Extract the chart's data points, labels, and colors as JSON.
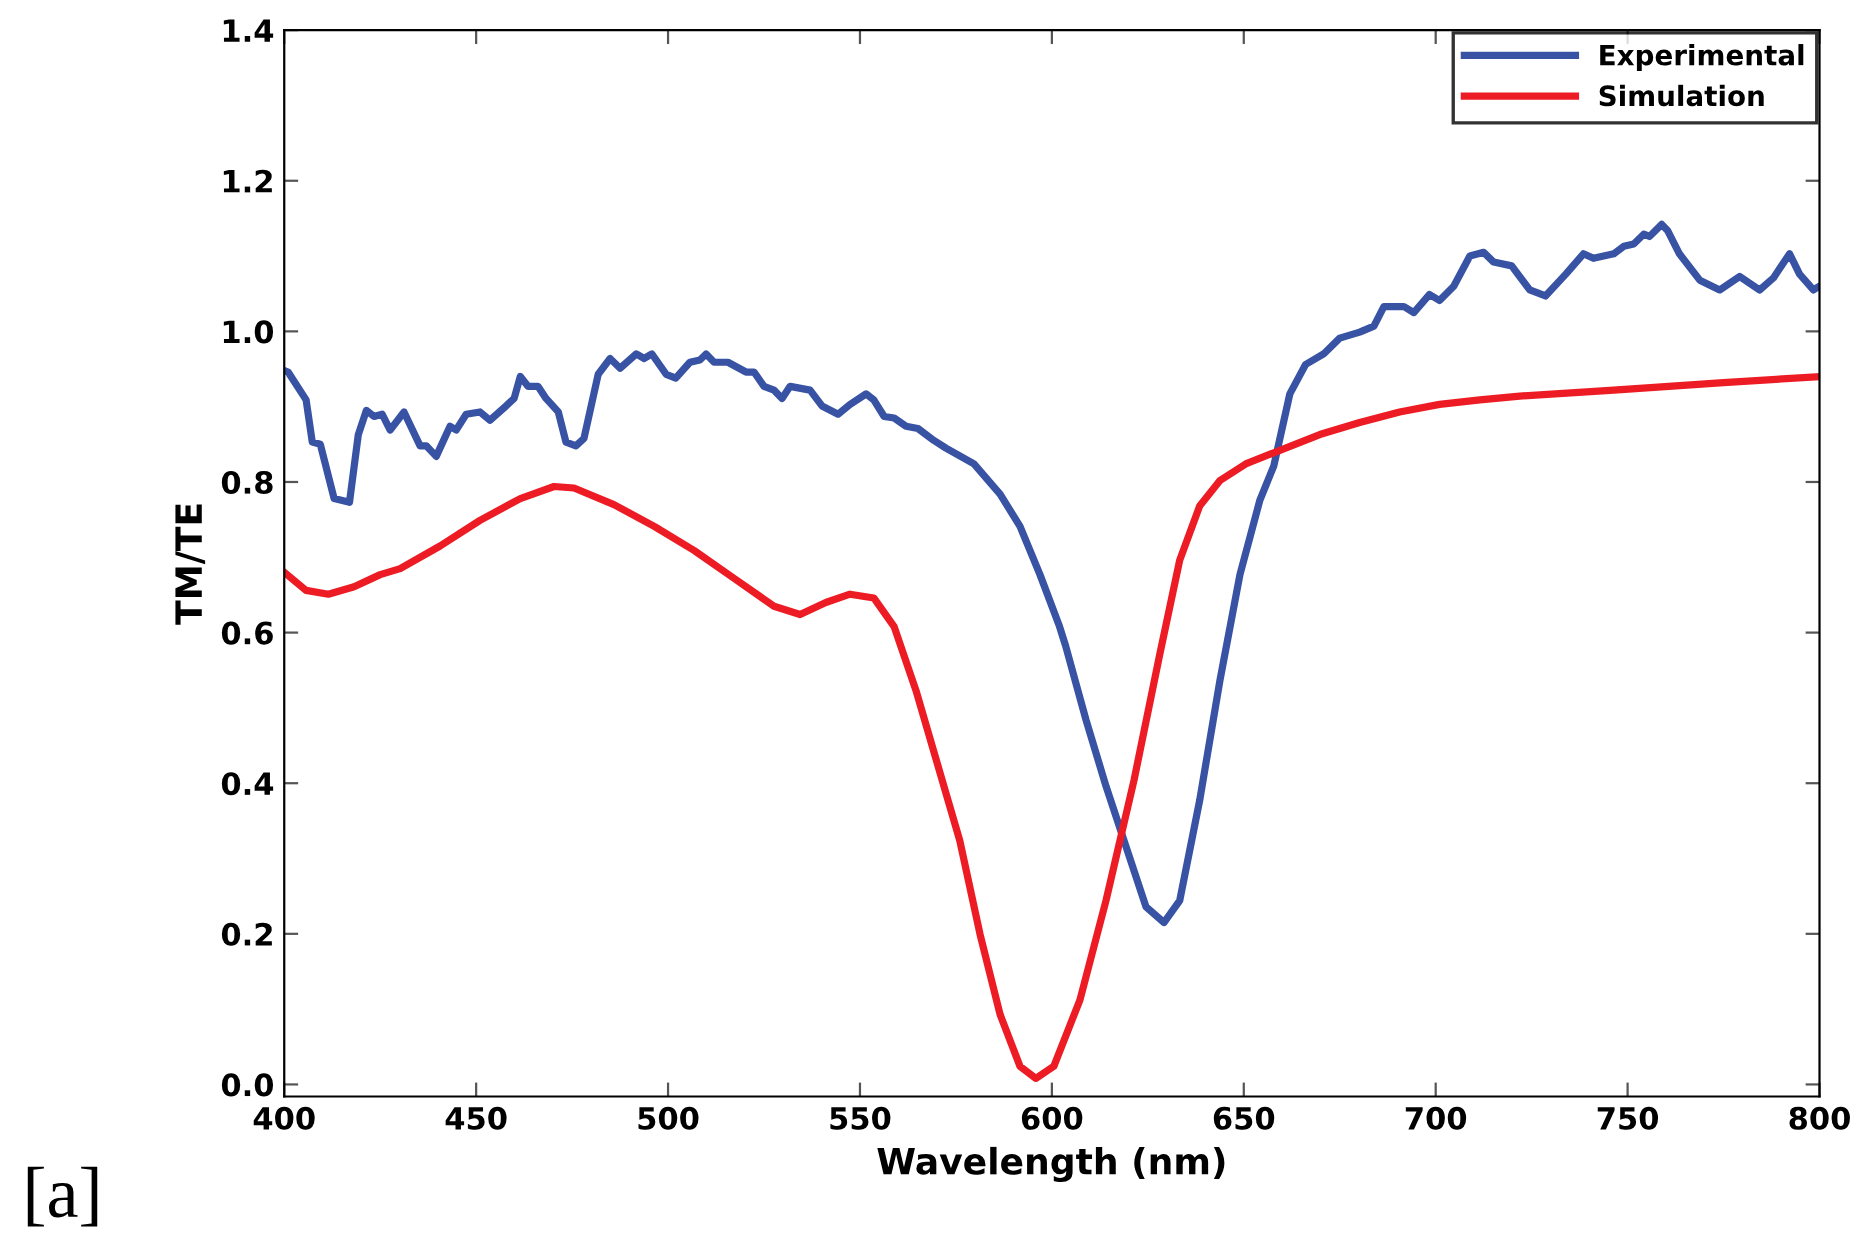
{
  "chart_data": {
    "type": "line",
    "xlabel": "Wavelength (nm)",
    "ylabel": "TM/TE",
    "xlim": [
      400,
      800
    ],
    "ylim": [
      -0.016,
      1.4
    ],
    "xticks": [
      400,
      450,
      500,
      550,
      600,
      650,
      700,
      750,
      800
    ],
    "yticks": [
      {
        "value": 0,
        "label": "0.0"
      },
      0.2,
      0.4,
      0.6,
      0.8,
      {
        "value": 1,
        "label": "1.0"
      },
      1.2,
      1.4
    ],
    "grid": false,
    "legend": "top right",
    "marker": "none",
    "line_style": "solid",
    "annotations": [
      "[a]"
    ],
    "series": [
      {
        "name": "Experimental",
        "color": "#3953a4",
        "x": [
          400,
          401,
          405.7,
          407.3,
          409.4,
          413,
          417,
          419.3,
          421.4,
          423.4,
          425.5,
          427.6,
          431.2,
          435.4,
          437,
          439.6,
          443.2,
          444.8,
          447.4,
          451,
          453.6,
          457.8,
          459.9,
          461.5,
          463.5,
          466.1,
          468.2,
          471.4,
          473.4,
          476,
          478.1,
          481.8,
          484.9,
          487.5,
          491.7,
          493.8,
          495.8,
          499.5,
          502,
          505.7,
          508.3,
          509.9,
          512,
          515.6,
          520.3,
          522.4,
          525,
          527.6,
          529.7,
          531.8,
          537,
          540.1,
          544.3,
          547.4,
          551.6,
          553.6,
          556.3,
          558.9,
          562,
          565.1,
          569.3,
          572.4,
          579.7,
          586.5,
          591.7,
          596.9,
          602,
          603.6,
          608.9,
          614.1,
          619.3,
          624.5,
          629.2,
          633.3,
          638.5,
          643.8,
          649,
          654.2,
          657.8,
          662,
          666.1,
          670.8,
          675,
          680.2,
          683.9,
          686.5,
          691.7,
          694.3,
          698.4,
          701,
          704.7,
          708.9,
          712.5,
          715.1,
          719.8,
          724.5,
          728.6,
          733.9,
          738.5,
          741.1,
          746.4,
          749,
          751.6,
          754.2,
          755.7,
          758.9,
          760.4,
          763.5,
          768.8,
          774,
          779.2,
          784.4,
          788,
          792.2,
          794.8,
          798.4,
          800
        ],
        "values": [
          0.948,
          0.946,
          0.909,
          0.853,
          0.85,
          0.778,
          0.773,
          0.863,
          0.895,
          0.887,
          0.89,
          0.869,
          0.893,
          0.848,
          0.848,
          0.834,
          0.874,
          0.869,
          0.89,
          0.893,
          0.882,
          0.901,
          0.911,
          0.94,
          0.927,
          0.927,
          0.911,
          0.893,
          0.853,
          0.848,
          0.858,
          0.943,
          0.964,
          0.951,
          0.97,
          0.964,
          0.97,
          0.943,
          0.938,
          0.959,
          0.962,
          0.97,
          0.959,
          0.959,
          0.946,
          0.946,
          0.927,
          0.922,
          0.911,
          0.927,
          0.922,
          0.901,
          0.89,
          0.903,
          0.917,
          0.909,
          0.887,
          0.885,
          0.874,
          0.871,
          0.855,
          0.845,
          0.824,
          0.784,
          0.741,
          0.677,
          0.608,
          0.582,
          0.484,
          0.396,
          0.316,
          0.236,
          0.215,
          0.244,
          0.377,
          0.537,
          0.677,
          0.776,
          0.821,
          0.917,
          0.956,
          0.97,
          0.991,
          0.999,
          1.007,
          1.033,
          1.033,
          1.025,
          1.049,
          1.041,
          1.06,
          1.1,
          1.105,
          1.092,
          1.087,
          1.055,
          1.047,
          1.076,
          1.103,
          1.097,
          1.103,
          1.113,
          1.116,
          1.129,
          1.126,
          1.142,
          1.134,
          1.103,
          1.068,
          1.055,
          1.073,
          1.055,
          1.071,
          1.103,
          1.076,
          1.055,
          1.06
        ]
      },
      {
        "name": "Simulation",
        "color": "#ed1c24",
        "x": [
          400,
          405.7,
          411.5,
          418.2,
          425,
          430.2,
          440.6,
          451,
          461.5,
          470.3,
          475.5,
          485.9,
          496.4,
          506.8,
          517.2,
          527.6,
          534.4,
          541.1,
          547.4,
          553.6,
          558.9,
          564.6,
          576,
          581.3,
          586.5,
          591.7,
          595.8,
          600.5,
          607.3,
          614.1,
          621.4,
          628.1,
          633.3,
          638.5,
          643.8,
          650.5,
          659.4,
          669.8,
          680.2,
          690.6,
          701,
          711.5,
          721.9,
          746.4,
          775,
          800
        ],
        "values": [
          0.68,
          0.656,
          0.651,
          0.661,
          0.677,
          0.685,
          0.715,
          0.749,
          0.778,
          0.794,
          0.792,
          0.77,
          0.741,
          0.709,
          0.672,
          0.635,
          0.624,
          0.64,
          0.651,
          0.646,
          0.608,
          0.523,
          0.324,
          0.199,
          0.093,
          0.024,
          0.008,
          0.024,
          0.112,
          0.244,
          0.404,
          0.571,
          0.696,
          0.768,
          0.802,
          0.824,
          0.842,
          0.863,
          0.879,
          0.893,
          0.903,
          0.909,
          0.914,
          0.922,
          0.932,
          0.94
        ]
      }
    ]
  }
}
